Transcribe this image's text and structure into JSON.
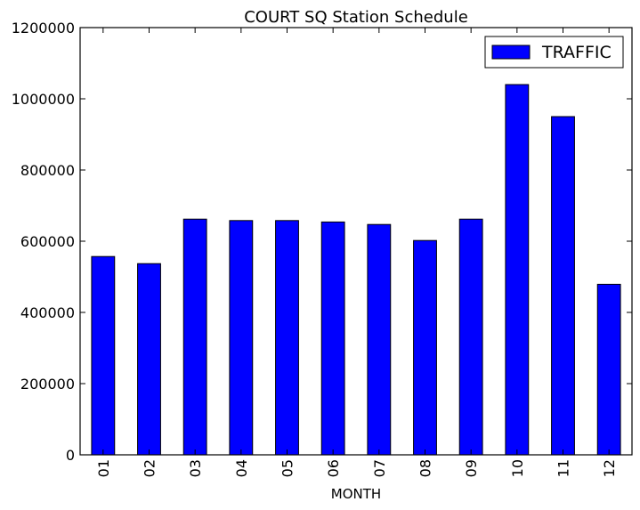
{
  "chart_data": {
    "type": "bar",
    "title": "COURT SQ Station Schedule",
    "xlabel": "MONTH",
    "ylabel": "",
    "categories": [
      "01",
      "02",
      "03",
      "04",
      "05",
      "06",
      "07",
      "08",
      "09",
      "10",
      "11",
      "12"
    ],
    "series": [
      {
        "name": "TRAFFIC",
        "color": "#0000ff",
        "values": [
          557000,
          537000,
          662000,
          658000,
          658000,
          654000,
          647000,
          602000,
          662000,
          1040000,
          950000,
          479000
        ]
      }
    ],
    "ylim": [
      0,
      1200000
    ],
    "yticks": [
      "0",
      "200000",
      "400000",
      "600000",
      "800000",
      "1000000",
      "1200000"
    ],
    "ytick_values": [
      0,
      200000,
      400000,
      600000,
      800000,
      1000000,
      1200000
    ],
    "grid": false,
    "legend_position": "top-right"
  }
}
